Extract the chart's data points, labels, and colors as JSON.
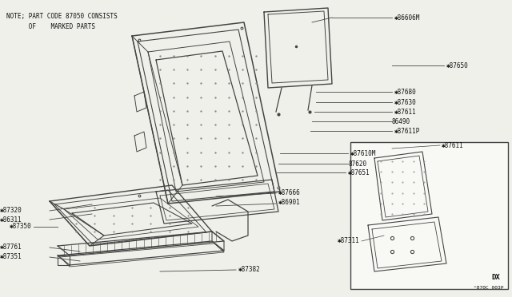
{
  "bg_color": "#f0f0eb",
  "line_color": "#444444",
  "text_color": "#111111",
  "note_line1": "NOTE; PART CODE 87050 CONSISTS",
  "note_line2": "      OF    MARKED PARTS",
  "diagram_code": "^870C 003P",
  "dx_label": "DX"
}
